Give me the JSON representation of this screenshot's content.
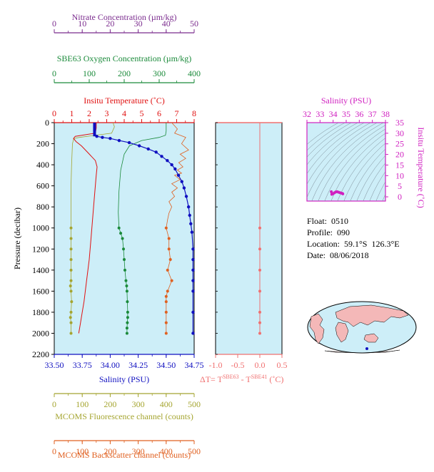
{
  "float_info": {
    "float_line": "Float:  0510",
    "profile_line": "Profile:  090",
    "location_line": "Location:  59.1°S  126.3°E",
    "date_line": "Date:  08/06/2018"
  },
  "colors": {
    "nitrate": "#7b2c8e",
    "oxygen": "#1a8a3a",
    "temperature": "#e01010",
    "salinity": "#1010c0",
    "fluorescence": "#a5a530",
    "backscatter": "#e06020",
    "delta": "#f07070",
    "ts": "#d020c0",
    "panel_bg": "#cdeef8",
    "land": "#f4b8b8"
  },
  "chart_data": [
    {
      "type": "line",
      "name": "profile",
      "ylabel": "Pressure (decibar)",
      "ylim": [
        2200,
        0
      ],
      "yticks": [
        "0",
        "200",
        "400",
        "600",
        "800",
        "1000",
        "1200",
        "1400",
        "1600",
        "1800",
        "2000",
        "2200"
      ],
      "axes": {
        "nitrate": {
          "label": "Nitrate Concentration (µm/kg)",
          "range": [
            0,
            50
          ],
          "ticks": [
            "0",
            "10",
            "20",
            "30",
            "40",
            "50"
          ]
        },
        "oxygen": {
          "label": "SBE63 Oxygen Concentration (µm/kg)",
          "range": [
            0,
            400
          ],
          "ticks": [
            "0",
            "100",
            "200",
            "300",
            "400"
          ]
        },
        "temperature": {
          "label": "Insitu Temperature (˚C)",
          "range": [
            0,
            8
          ],
          "ticks": [
            "0",
            "1",
            "2",
            "3",
            "4",
            "5",
            "6",
            "7",
            "8"
          ]
        },
        "salinity": {
          "label": "Salinity (PSU)",
          "range": [
            33.5,
            34.75
          ],
          "ticks": [
            "33.50",
            "33.75",
            "34.00",
            "34.25",
            "34.50",
            "34.75"
          ]
        },
        "fluorescence": {
          "label": "MCOMS Fluorescence channel (counts)",
          "range": [
            0,
            500
          ],
          "ticks": [
            "0",
            "100",
            "200",
            "300",
            "400",
            "500"
          ]
        },
        "backscatter": {
          "label": "MCOMS Backscatter channel (counts)",
          "range": [
            0,
            500
          ],
          "ticks": [
            "0",
            "100",
            "200",
            "300",
            "400",
            "500"
          ]
        }
      },
      "series": [
        {
          "name": "temperature",
          "axis": "temperature",
          "x": [
            2.4,
            2.4,
            2.35,
            1.2,
            1.1,
            1.25,
            1.55,
            1.9,
            2.35,
            2.45,
            2.4,
            2.3,
            2.2,
            2.1,
            2.0,
            1.85,
            1.7,
            1.6,
            1.5,
            1.4
          ],
          "y": [
            0,
            50,
            100,
            130,
            150,
            180,
            220,
            280,
            360,
            420,
            500,
            700,
            900,
            1100,
            1300,
            1500,
            1700,
            1800,
            1900,
            2000
          ]
        },
        {
          "name": "salinity",
          "axis": "salinity",
          "x": [
            33.86,
            33.86,
            33.86,
            33.88,
            33.93,
            34.0,
            34.08,
            34.17,
            34.26,
            34.34,
            34.41,
            34.46,
            34.51,
            34.55,
            34.58,
            34.61,
            34.64,
            34.66,
            34.68,
            34.7,
            34.71,
            34.72,
            34.73,
            34.74,
            34.74,
            34.74,
            34.74,
            34.74,
            34.74,
            34.74
          ],
          "y": [
            0,
            50,
            100,
            130,
            140,
            150,
            170,
            190,
            220,
            250,
            280,
            320,
            360,
            400,
            440,
            500,
            560,
            620,
            700,
            800,
            880,
            960,
            1040,
            1200,
            1300,
            1400,
            1500,
            1600,
            1800,
            2000
          ]
        },
        {
          "name": "oxygen",
          "axis": "oxygen",
          "x": [
            320,
            320,
            318,
            300,
            250,
            215,
            200,
            190,
            185,
            183,
            185,
            190,
            195,
            198,
            200,
            202,
            205,
            207,
            208,
            209,
            210,
            210,
            209,
            208,
            208
          ],
          "y": [
            0,
            80,
            120,
            140,
            170,
            220,
            300,
            450,
            650,
            850,
            1000,
            1050,
            1100,
            1200,
            1300,
            1400,
            1500,
            1550,
            1600,
            1700,
            1800,
            1850,
            1900,
            1950,
            2000
          ]
        },
        {
          "name": "fluorescence",
          "axis": "fluorescence",
          "x": [
            210,
            215,
            205,
            90,
            70,
            65,
            62,
            60,
            60,
            60,
            60,
            60,
            60,
            60,
            60,
            58,
            60,
            62,
            60,
            58,
            60,
            60
          ],
          "y": [
            0,
            40,
            100,
            140,
            150,
            200,
            400,
            600,
            800,
            1000,
            1100,
            1200,
            1300,
            1400,
            1500,
            1550,
            1600,
            1700,
            1800,
            1850,
            1900,
            2000
          ]
        },
        {
          "name": "backscatter",
          "axis": "backscatter",
          "x": [
            420,
            440,
            430,
            470,
            455,
            480,
            450,
            470,
            445,
            460,
            440,
            455,
            430,
            450,
            420,
            440,
            420,
            430,
            410,
            420,
            410,
            405,
            400,
            410,
            410,
            415,
            405,
            420,
            405,
            400,
            400,
            400,
            400,
            400
          ],
          "y": [
            0,
            60,
            100,
            140,
            200,
            260,
            300,
            340,
            380,
            420,
            450,
            480,
            500,
            540,
            580,
            620,
            660,
            700,
            750,
            800,
            860,
            920,
            1000,
            1100,
            1200,
            1300,
            1400,
            1500,
            1600,
            1650,
            1700,
            1800,
            1900,
            2000
          ]
        },
        {
          "name": "nitrate",
          "axis": "nitrate",
          "x": [],
          "y": []
        }
      ]
    },
    {
      "type": "line",
      "name": "delta",
      "xlabel": "ΔT= T",
      "xlabel_sup1": "SBE63",
      "xlabel_mid": " - T",
      "xlabel_sup2": "SBE41",
      "xlabel_end": " (˚C)",
      "xlim": [
        -1.0,
        0.5
      ],
      "xticks": [
        "-1.0",
        "-0.5",
        "0.0",
        "0.5"
      ],
      "x": [
        0.0,
        0.0,
        0.0,
        0.0,
        0.0,
        0.0,
        0.0,
        0.0,
        0.0,
        0.0
      ],
      "y": [
        0,
        150,
        200,
        1000,
        1200,
        1400,
        1600,
        1800,
        1900,
        2000
      ]
    },
    {
      "type": "scatter",
      "name": "t-s",
      "xlabel": "Salinity (PSU)",
      "ylabel": "Insitu Temperature (˚C)",
      "xlim": [
        32,
        38
      ],
      "ylim": [
        -2,
        35
      ],
      "xticks": [
        "32",
        "33",
        "34",
        "35",
        "36",
        "37",
        "38"
      ],
      "yticks": [
        "0",
        "5",
        "10",
        "15",
        "20",
        "25",
        "30",
        "35"
      ],
      "x": [
        33.86,
        33.9,
        34.0,
        34.1,
        34.2,
        34.3,
        34.4,
        34.5,
        34.6,
        34.7,
        34.74
      ],
      "y": [
        2.4,
        1.2,
        1.5,
        1.9,
        2.3,
        2.4,
        2.2,
        2.0,
        1.8,
        1.6,
        1.4
      ]
    }
  ]
}
